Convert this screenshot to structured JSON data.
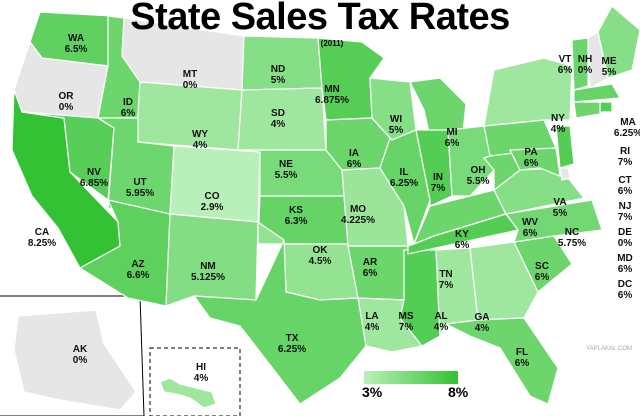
{
  "title": "State Sales Tax Rates",
  "subtitle": "(2011)",
  "legend": {
    "min_label": "3%",
    "max_label": "8%",
    "min_color": "#b9f0b9",
    "max_color": "#33c233"
  },
  "watermark": "YAPLAKAL.COM",
  "colors": {
    "none": "#e6e6e6",
    "ocean": "#ffffff",
    "border": "#ffffff"
  },
  "states": [
    {
      "abbr": "WA",
      "rate": "6.5%",
      "value": 6.5
    },
    {
      "abbr": "OR",
      "rate": "0%",
      "value": 0
    },
    {
      "abbr": "CA",
      "rate": "8.25%",
      "value": 8.25
    },
    {
      "abbr": "ID",
      "rate": "6%",
      "value": 6
    },
    {
      "abbr": "NV",
      "rate": "6.85%",
      "value": 6.85
    },
    {
      "abbr": "MT",
      "rate": "0%",
      "value": 0
    },
    {
      "abbr": "WY",
      "rate": "4%",
      "value": 4
    },
    {
      "abbr": "UT",
      "rate": "5.95%",
      "value": 5.95
    },
    {
      "abbr": "AZ",
      "rate": "6.6%",
      "value": 6.6
    },
    {
      "abbr": "CO",
      "rate": "2.9%",
      "value": 2.9
    },
    {
      "abbr": "NM",
      "rate": "5.125%",
      "value": 5.125
    },
    {
      "abbr": "ND",
      "rate": "5%",
      "value": 5
    },
    {
      "abbr": "SD",
      "rate": "4%",
      "value": 4
    },
    {
      "abbr": "NE",
      "rate": "5.5%",
      "value": 5.5
    },
    {
      "abbr": "KS",
      "rate": "6.3%",
      "value": 6.3
    },
    {
      "abbr": "OK",
      "rate": "4.5%",
      "value": 4.5
    },
    {
      "abbr": "TX",
      "rate": "6.25%",
      "value": 6.25
    },
    {
      "abbr": "MN",
      "rate": "6.875%",
      "value": 6.875
    },
    {
      "abbr": "IA",
      "rate": "6%",
      "value": 6
    },
    {
      "abbr": "MO",
      "rate": "4.225%",
      "value": 4.225
    },
    {
      "abbr": "AR",
      "rate": "6%",
      "value": 6
    },
    {
      "abbr": "LA",
      "rate": "4%",
      "value": 4
    },
    {
      "abbr": "WI",
      "rate": "5%",
      "value": 5
    },
    {
      "abbr": "IL",
      "rate": "6.25%",
      "value": 6.25
    },
    {
      "abbr": "MS",
      "rate": "7%",
      "value": 7
    },
    {
      "abbr": "MI",
      "rate": "6%",
      "value": 6
    },
    {
      "abbr": "IN",
      "rate": "7%",
      "value": 7
    },
    {
      "abbr": "OH",
      "rate": "5.5%",
      "value": 5.5
    },
    {
      "abbr": "KY",
      "rate": "6%",
      "value": 6
    },
    {
      "abbr": "TN",
      "rate": "7%",
      "value": 7
    },
    {
      "abbr": "AL",
      "rate": "4%",
      "value": 4
    },
    {
      "abbr": "GA",
      "rate": "4%",
      "value": 4
    },
    {
      "abbr": "FL",
      "rate": "6%",
      "value": 6
    },
    {
      "abbr": "SC",
      "rate": "6%",
      "value": 6
    },
    {
      "abbr": "NC",
      "rate": "5.75%",
      "value": 5.75
    },
    {
      "abbr": "VA",
      "rate": "5%",
      "value": 5
    },
    {
      "abbr": "WV",
      "rate": "6%",
      "value": 6
    },
    {
      "abbr": "PA",
      "rate": "6%",
      "value": 6
    },
    {
      "abbr": "NY",
      "rate": "4%",
      "value": 4
    },
    {
      "abbr": "VT",
      "rate": "6%",
      "value": 6
    },
    {
      "abbr": "NH",
      "rate": "0%",
      "value": 0
    },
    {
      "abbr": "ME",
      "rate": "5%",
      "value": 5
    },
    {
      "abbr": "MA",
      "rate": "6.25%",
      "value": 6.25
    },
    {
      "abbr": "RI",
      "rate": "7%",
      "value": 7
    },
    {
      "abbr": "CT",
      "rate": "6%",
      "value": 6
    },
    {
      "abbr": "NJ",
      "rate": "7%",
      "value": 7
    },
    {
      "abbr": "DE",
      "rate": "0%",
      "value": 0
    },
    {
      "abbr": "MD",
      "rate": "6%",
      "value": 6
    },
    {
      "abbr": "DC",
      "rate": "6%",
      "value": 6
    },
    {
      "abbr": "AK",
      "rate": "0%",
      "value": 0
    },
    {
      "abbr": "HI",
      "rate": "4%",
      "value": 4
    }
  ]
}
